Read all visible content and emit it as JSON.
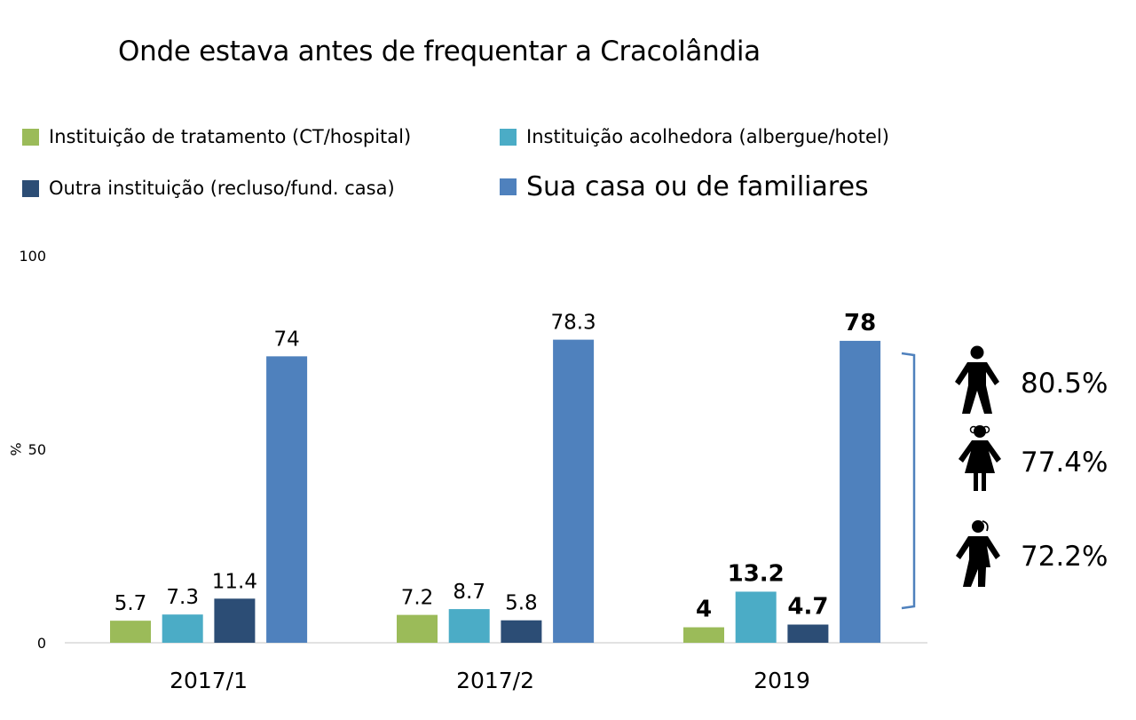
{
  "title": "Onde estava antes de frequentar a Cracolândia",
  "legend": [
    {
      "label": "Instituição de tratamento (CT/hospital)",
      "color": "#9bbb59"
    },
    {
      "label": "Instituição acolhedora (albergue/hotel)",
      "color": "#4bacc6"
    },
    {
      "label": "Outra instituição (recluso/fund. casa)",
      "color": "#2c4d75"
    },
    {
      "label": "Sua casa ou de familiares",
      "color": "#4f81bd"
    }
  ],
  "chart_data": {
    "type": "bar",
    "title": "Onde estava antes de frequentar a Cracolândia",
    "xlabel": "",
    "ylabel": "%",
    "ylim": [
      0,
      100
    ],
    "yticks": [
      0,
      50,
      100
    ],
    "grid": false,
    "legend_position": "top",
    "categories": [
      "2017/1",
      "2017/2",
      "2019"
    ],
    "series": [
      {
        "name": "Instituição de tratamento (CT/hospital)",
        "color": "#9bbb59",
        "values": [
          5.7,
          7.2,
          4
        ],
        "labels": [
          "5.7",
          "7.2",
          "4"
        ]
      },
      {
        "name": "Instituição acolhedora (albergue/hotel)",
        "color": "#4bacc6",
        "values": [
          7.3,
          8.7,
          13.2
        ],
        "labels": [
          "7.3",
          "8.7",
          "13.2"
        ]
      },
      {
        "name": "Outra instituição (recluso/fund. casa)",
        "color": "#2c4d75",
        "values": [
          11.4,
          5.8,
          4.7
        ],
        "labels": [
          "11.4",
          "5.8",
          "4.7"
        ]
      },
      {
        "name": "Sua casa ou de familiares",
        "color": "#4f81bd",
        "values": [
          74,
          78.3,
          78
        ],
        "labels": [
          "74",
          "78.3",
          "78"
        ]
      }
    ],
    "bold_label_categories": [
      "2019"
    ],
    "annotation": {
      "bracket_color": "#4f81bd",
      "applies_to": "Sua casa ou de familiares (2019)",
      "breakdown": [
        {
          "icon": "man-icon",
          "label": "80.5%"
        },
        {
          "icon": "woman-icon",
          "label": "77.4%"
        },
        {
          "icon": "trans-person-icon",
          "label": "72.2%"
        }
      ]
    }
  }
}
